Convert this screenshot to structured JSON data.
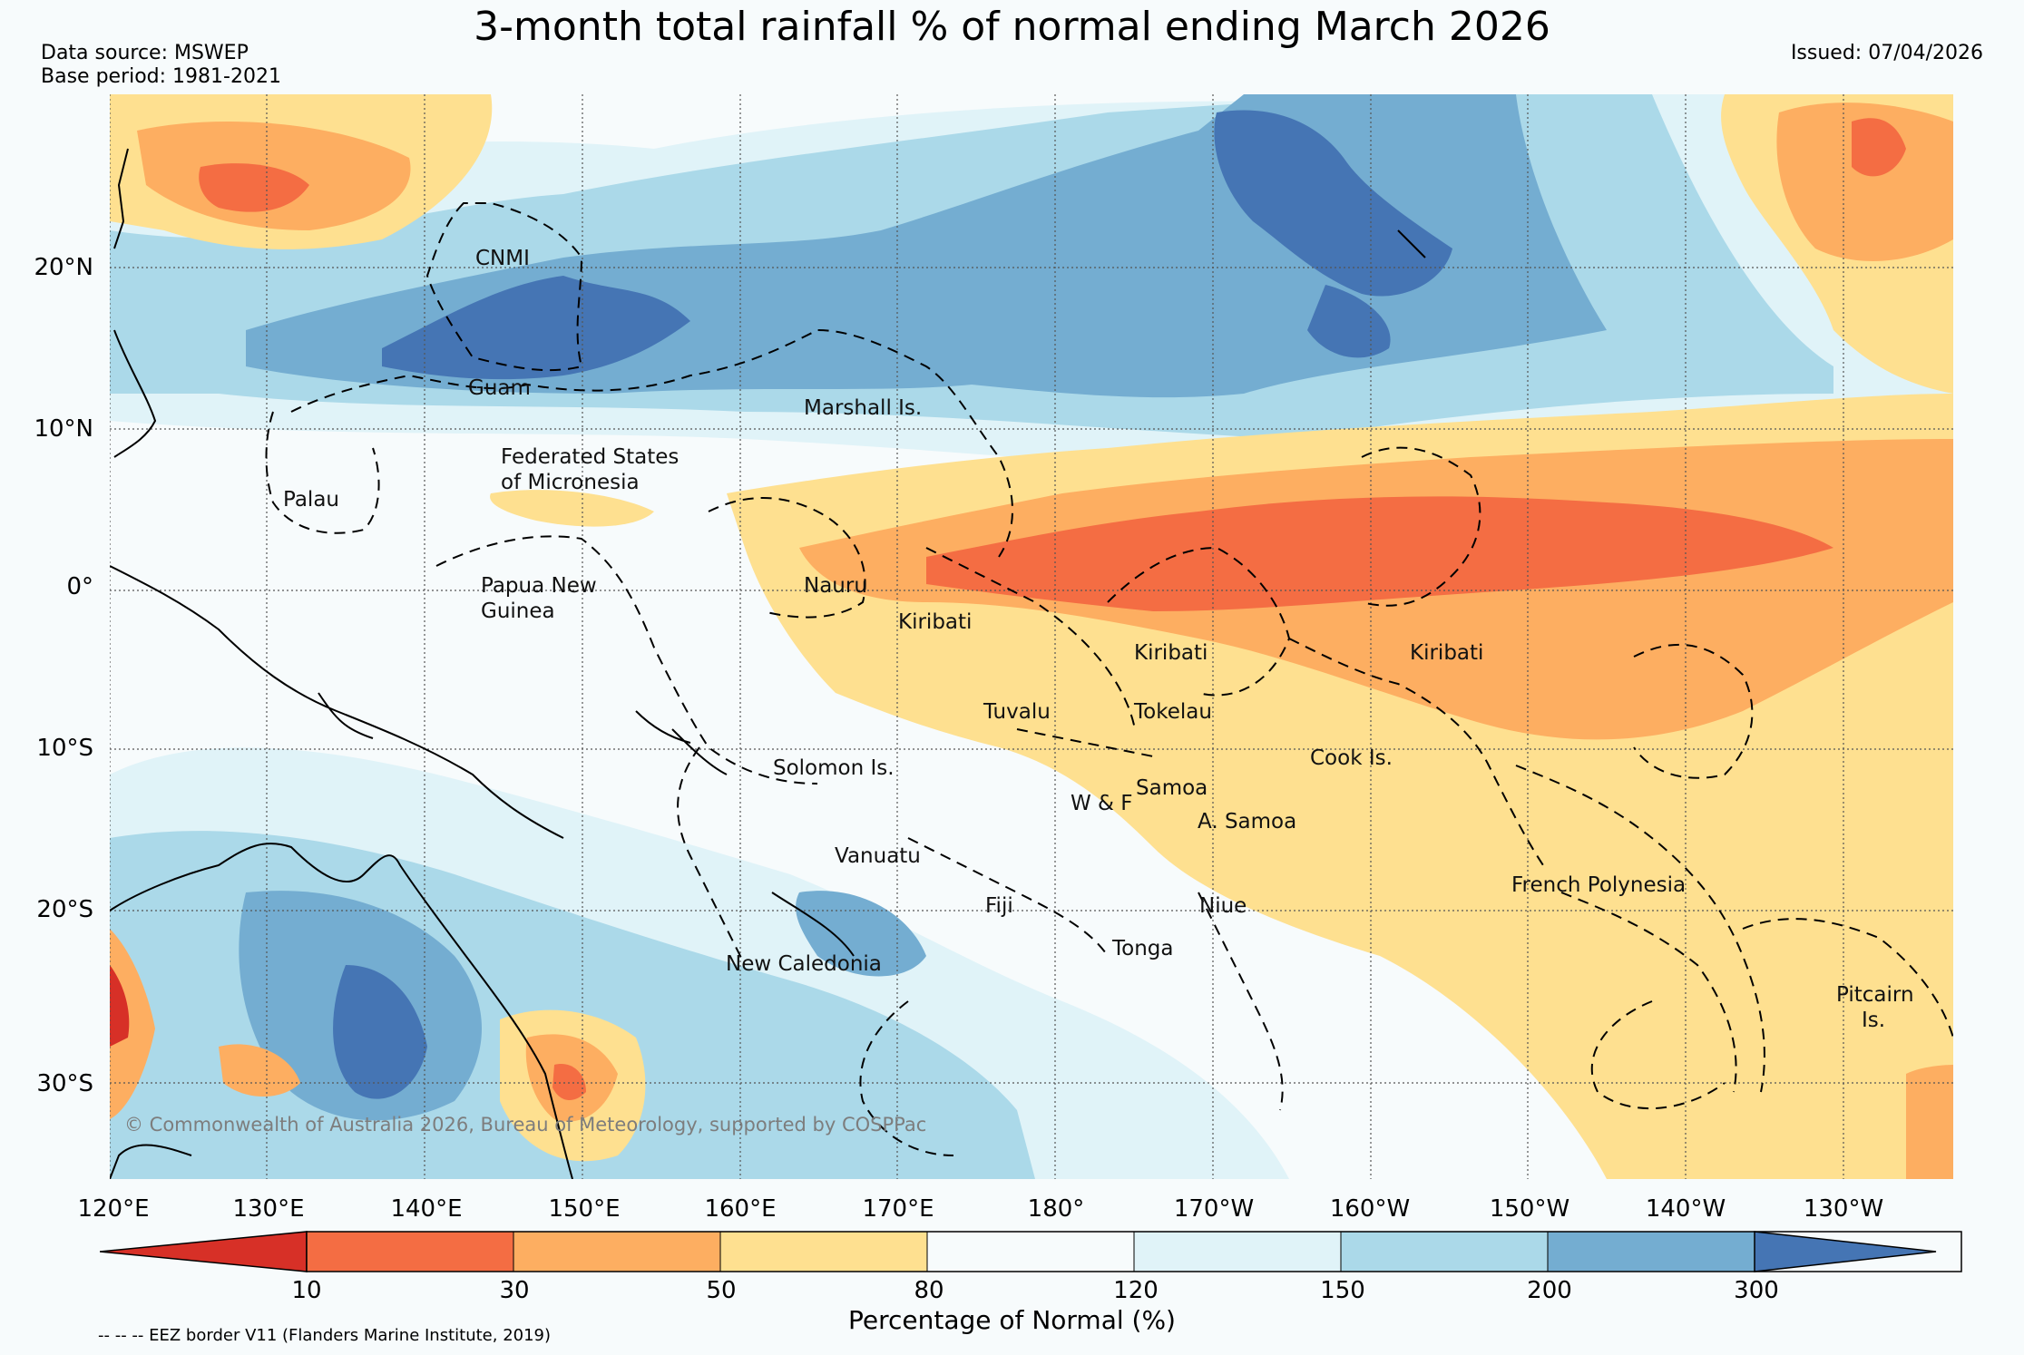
{
  "title": "3-month total rainfall % of normal ending March 2026",
  "data_source": "Data source: MSWEP",
  "base_period": "Base period: 1981-2021",
  "issued": "Issued: 07/04/2026",
  "lat_labels": [
    "20°N",
    "10°N",
    "0°",
    "10°S",
    "20°S",
    "30°S"
  ],
  "lon_labels": [
    "120°E",
    "130°E",
    "140°E",
    "150°E",
    "160°E",
    "170°E",
    "180°",
    "170°W",
    "160°W",
    "150°W",
    "140°W",
    "130°W"
  ],
  "regions": {
    "cnmi": "CNMI",
    "guam": "Guam",
    "marshall": "Marshall Is.",
    "fsm_line1": "Federated States",
    "fsm_line2": "of Micronesia",
    "palau": "Palau",
    "png_line1": "Papua New",
    "png_line2": "Guinea",
    "nauru": "Nauru",
    "kiribati_west": "Kiribati",
    "kiribati_central": "Kiribati",
    "kiribati_east": "Kiribati",
    "tuvalu": "Tuvalu",
    "tokelau": "Tokelau",
    "solomon": "Solomon Is.",
    "samoa": "Samoa",
    "wf": "W & F",
    "asamoa": "A. Samoa",
    "cook": "Cook Is.",
    "vanuatu": "Vanuatu",
    "fiji": "Fiji",
    "niue": "Niue",
    "tonga": "Tonga",
    "new_caledonia": "New Caledonia",
    "french_polynesia": "French Polynesia",
    "pitcairn_line1": "Pitcairn",
    "pitcairn_line2": "Is."
  },
  "copyright": "© Commonwealth of Australia 2026, Bureau of Meteorology, supported by COSPPac",
  "colorbar": {
    "ticks": [
      "10",
      "30",
      "50",
      "80",
      "120",
      "150",
      "200",
      "300"
    ],
    "colors": [
      "#d73027",
      "#f46d43",
      "#fdae61",
      "#fee090",
      "#f7fbfc",
      "#e0f3f8",
      "#abd9e9",
      "#74add1",
      "#4575b4"
    ],
    "label": "Percentage of Normal (%)"
  },
  "footnote": "-- -- -- EEZ border V11 (Flanders Marine Institute, 2019)"
}
